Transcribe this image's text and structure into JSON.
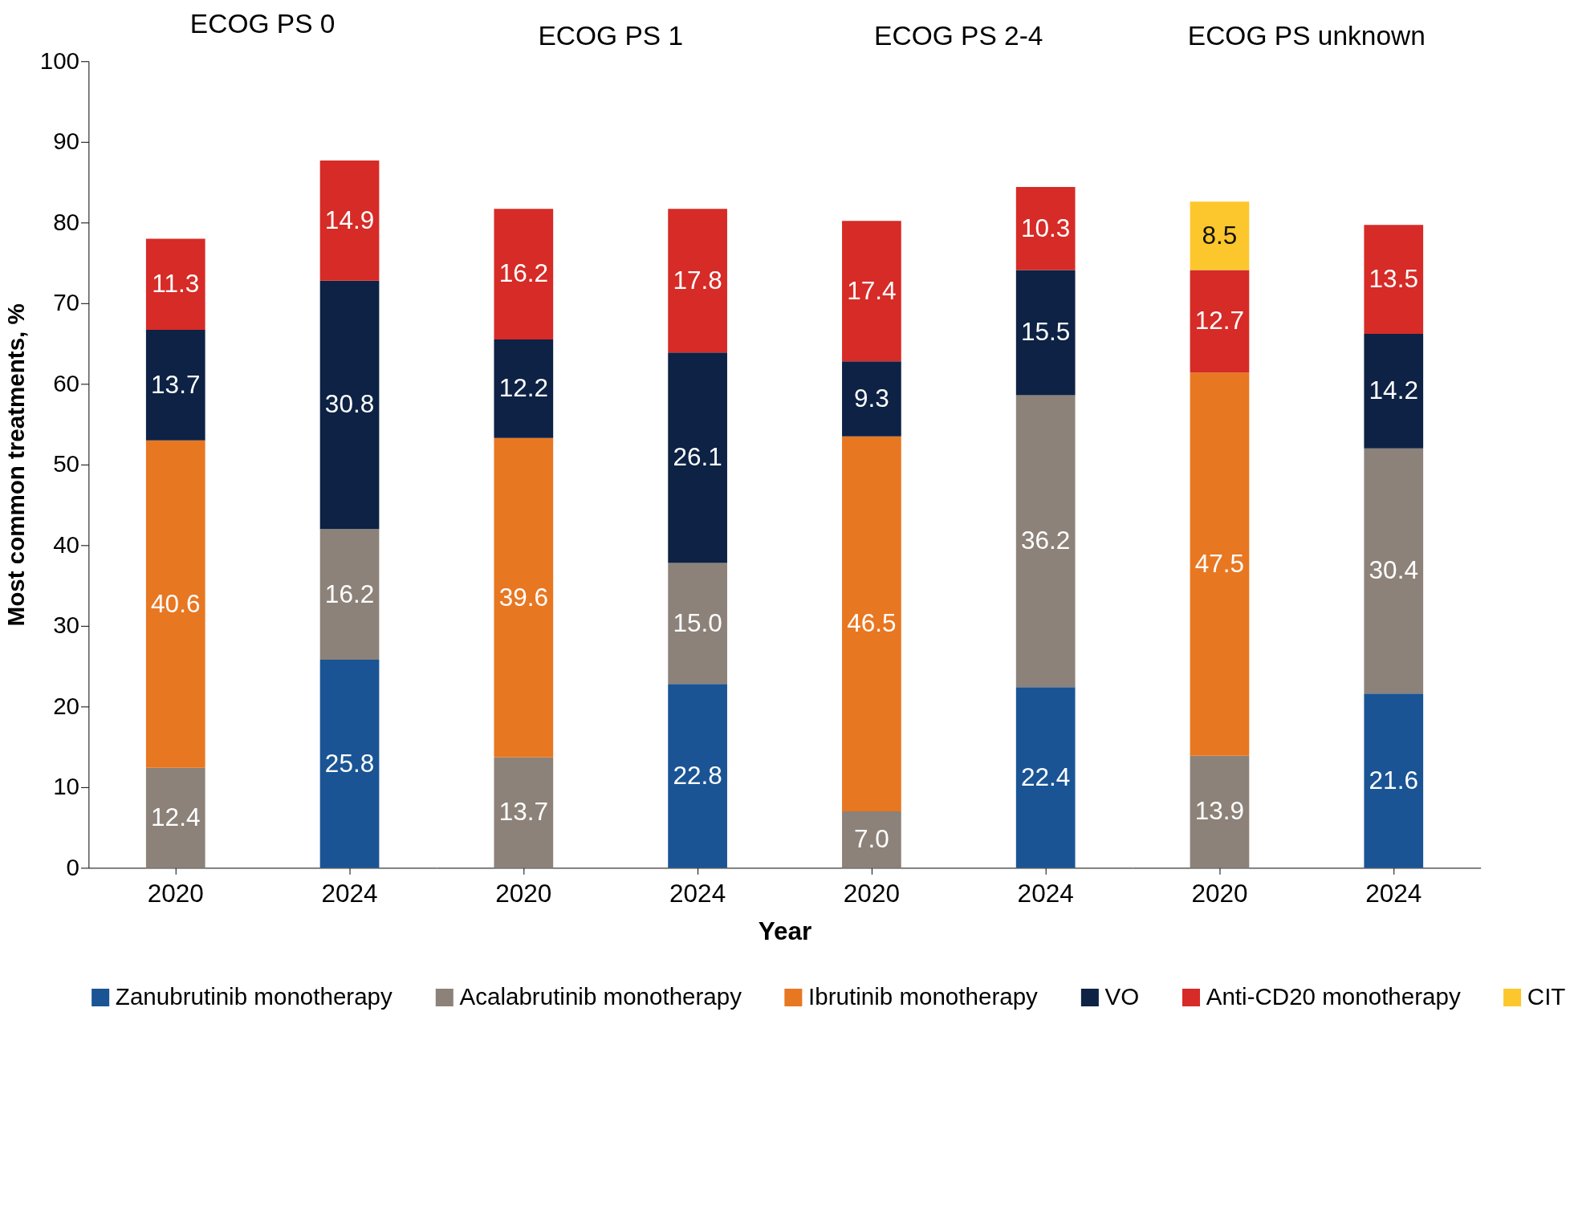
{
  "chart_data": [
    {
      "type": "bar",
      "title": "ECOG PS 0",
      "ylabel": "Most common treatments, %",
      "categories": [
        "2020",
        "2024"
      ],
      "stacked": true,
      "legend": "bottom",
      "ylim": [
        0,
        100
      ],
      "yticks": [
        0,
        10,
        20,
        30,
        40,
        50,
        60,
        70,
        80,
        90,
        100
      ],
      "series": [
        {
          "name": "Zanubrutinib monotherapy",
          "color": "#1a5494",
          "values": [
            null,
            25.8
          ],
          "value_labels": [
            null,
            "25.8"
          ]
        },
        {
          "name": "Acalabrutinib monotherapy",
          "color": "#8c8279",
          "values": [
            12.4,
            16.2
          ],
          "value_labels": [
            "12.4",
            "16.2"
          ]
        },
        {
          "name": "Ibrutinib monotherapy",
          "color": "#e87722",
          "values": [
            40.6,
            null
          ],
          "value_labels": [
            "40.6",
            null
          ]
        },
        {
          "name": "VO",
          "color": "#0d2244",
          "values": [
            13.7,
            30.8
          ],
          "value_labels": [
            "13.7",
            "30.8"
          ]
        },
        {
          "name": "Anti-CD20 monotherapy",
          "color": "#d62b27",
          "values": [
            11.3,
            14.9
          ],
          "value_labels": [
            "11.3",
            "14.9"
          ]
        },
        {
          "name": "CIT",
          "color": "#fcc72c",
          "values": [
            null,
            null
          ],
          "value_labels": [
            null,
            null
          ]
        }
      ]
    },
    {
      "type": "bar",
      "title": "ECOG PS 1",
      "xlabel": "Year",
      "categories": [
        "2020",
        "2024"
      ],
      "stacked": true,
      "tick_labels": "x",
      "ylim": [
        0,
        100
      ],
      "series": [
        {
          "color": "#1a5494",
          "values": [
            null,
            22.8
          ],
          "value_labels": [
            null,
            "22.8"
          ]
        },
        {
          "color": "#8c8279",
          "values": [
            13.7,
            15.0
          ],
          "value_labels": [
            "13.7",
            "15.0"
          ]
        },
        {
          "color": "#e87722",
          "values": [
            39.6,
            null
          ],
          "value_labels": [
            "39.6",
            null
          ]
        },
        {
          "color": "#0d2244",
          "values": [
            12.2,
            26.1
          ],
          "value_labels": [
            "12.2",
            "26.1"
          ]
        },
        {
          "color": "#d62b27",
          "values": [
            16.2,
            17.8
          ],
          "value_labels": [
            "16.2",
            "17.8"
          ]
        }
      ]
    },
    {
      "type": "bar",
      "title": "ECOG PS 2-4",
      "categories": [
        "2020",
        "2024"
      ],
      "stacked": true,
      "tick_labels": "x",
      "ylim": [
        0,
        100
      ],
      "series": [
        {
          "color": "#1a5494",
          "values": [
            null,
            22.4
          ],
          "value_labels": [
            null,
            "22.4"
          ]
        },
        {
          "color": "#8c8279",
          "values": [
            7.0,
            36.2
          ],
          "value_labels": [
            "7.0",
            "36.2"
          ]
        },
        {
          "color": "#e87722",
          "values": [
            46.5,
            null
          ],
          "value_labels": [
            "46.5",
            null
          ]
        },
        {
          "color": "#0d2244",
          "values": [
            9.3,
            15.5
          ],
          "value_labels": [
            "9.3",
            "15.5"
          ]
        },
        {
          "color": "#d62b27",
          "values": [
            17.4,
            10.3
          ],
          "value_labels": [
            "17.4",
            "10.3"
          ]
        }
      ]
    },
    {
      "type": "bar",
      "title": "ECOG PS unknown",
      "categories": [
        "2020",
        "2024"
      ],
      "stacked": true,
      "tick_labels": "x",
      "ylim": [
        0,
        100
      ],
      "series": [
        {
          "color": "#1a5494",
          "values": [
            null,
            21.6
          ],
          "value_labels": [
            null,
            "21.6"
          ]
        },
        {
          "color": "#8c8279",
          "values": [
            13.9,
            30.4
          ],
          "value_labels": [
            "13.9",
            "30.4"
          ]
        },
        {
          "color": "#e87722",
          "values": [
            47.5,
            null
          ],
          "value_labels": [
            "47.5",
            null
          ]
        },
        {
          "color": "#0d2244",
          "values": [
            null,
            14.2
          ],
          "value_labels": [
            null,
            "14.2"
          ]
        },
        {
          "color": "#d62b27",
          "values": [
            12.7,
            13.5
          ],
          "value_labels": [
            "12.7",
            "13.5"
          ]
        },
        {
          "color": "#fcc72c",
          "values": [
            8.5,
            null
          ],
          "value_labels": [
            "8.5",
            null
          ]
        }
      ]
    }
  ]
}
